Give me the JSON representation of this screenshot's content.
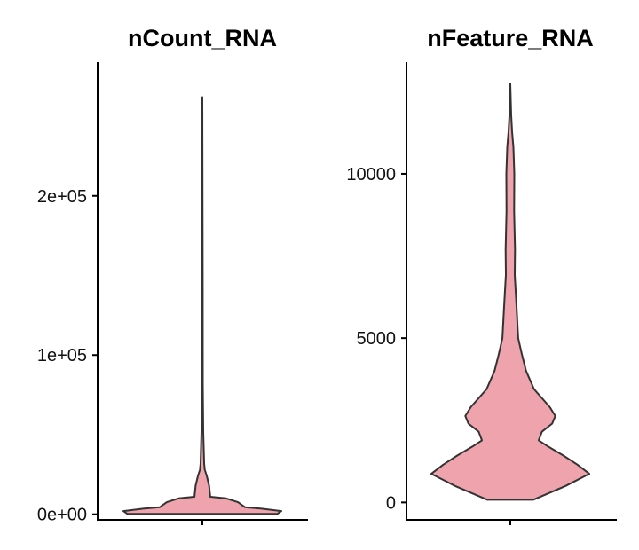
{
  "chart_data": [
    {
      "type": "violin",
      "title": "nCount_RNA",
      "xlabel": "",
      "ylabel": "",
      "ylim": [
        -3500,
        284000
      ],
      "yticks": [
        0,
        100000,
        200000
      ],
      "ytick_labels": [
        "0e+00",
        "1e+05",
        "2e+05"
      ],
      "fill_color": "#EEA3AD",
      "stroke_color": "#333333",
      "profile": [
        [
          300,
          0.95
        ],
        [
          2000,
          1.0
        ],
        [
          3500,
          0.75
        ],
        [
          4400,
          0.54
        ],
        [
          7600,
          0.45
        ],
        [
          10000,
          0.3
        ],
        [
          11000,
          0.1
        ],
        [
          18000,
          0.085
        ],
        [
          24000,
          0.056
        ],
        [
          28000,
          0.03
        ],
        [
          32000,
          0.022
        ],
        [
          52000,
          0.011
        ],
        [
          82000,
          0.006
        ],
        [
          150000,
          0.004
        ],
        [
          262000,
          0
        ]
      ]
    },
    {
      "type": "violin",
      "title": "nFeature_RNA",
      "xlabel": "",
      "ylabel": "",
      "ylim": [
        -530,
        13400
      ],
      "yticks": [
        0,
        5000,
        10000
      ],
      "ytick_labels": [
        "0",
        "5000",
        "10000"
      ],
      "fill_color": "#EEA3AD",
      "stroke_color": "#333333",
      "profile": [
        [
          80,
          0.29
        ],
        [
          500,
          0.7
        ],
        [
          870,
          1.0
        ],
        [
          1150,
          0.85
        ],
        [
          1430,
          0.67
        ],
        [
          1700,
          0.48
        ],
        [
          1890,
          0.36
        ],
        [
          2150,
          0.4
        ],
        [
          2400,
          0.53
        ],
        [
          2630,
          0.57
        ],
        [
          2900,
          0.5
        ],
        [
          3450,
          0.3
        ],
        [
          4000,
          0.2
        ],
        [
          4510,
          0.146
        ],
        [
          5000,
          0.1
        ],
        [
          5970,
          0.079
        ],
        [
          6930,
          0.056
        ],
        [
          7700,
          0.06
        ],
        [
          8860,
          0.048
        ],
        [
          10000,
          0.05
        ],
        [
          10800,
          0.039
        ],
        [
          11290,
          0.022
        ],
        [
          11780,
          0.011
        ],
        [
          12750,
          0
        ]
      ]
    }
  ]
}
